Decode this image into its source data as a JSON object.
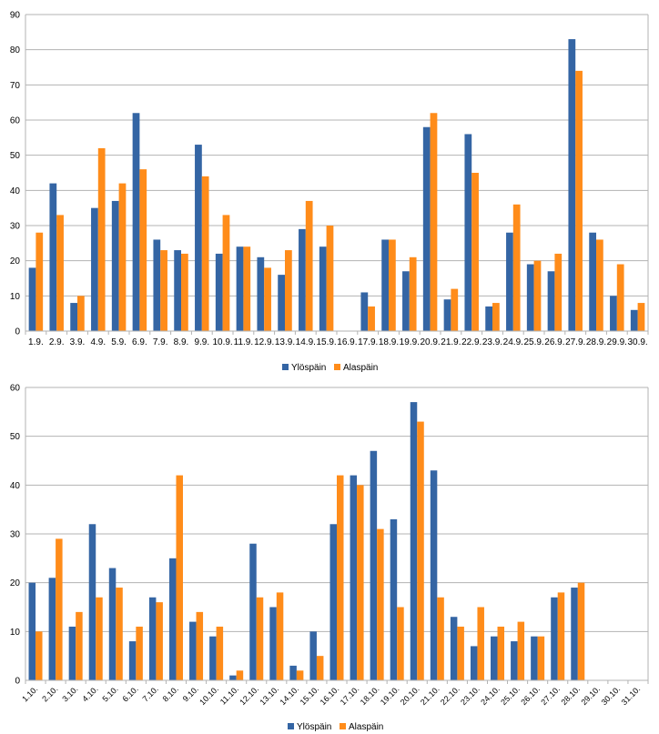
{
  "colors": {
    "series1": "#3465a4",
    "series2": "#ff8c1a",
    "grid": "#b3b3b3",
    "axis": "#b3b3b3",
    "text": "#000000"
  },
  "chart_data": [
    {
      "type": "bar",
      "title": "",
      "xlabel": "",
      "ylabel": "",
      "ylim": [
        0,
        90
      ],
      "yticks": [
        0,
        10,
        20,
        30,
        40,
        50,
        60,
        70,
        80,
        90
      ],
      "grid": true,
      "legend": "bottom-center",
      "categories": [
        "1.9.",
        "2.9.",
        "3.9.",
        "4.9.",
        "5.9.",
        "6.9.",
        "7.9.",
        "8.9.",
        "9.9.",
        "10.9.",
        "11.9.",
        "12.9.",
        "13.9.",
        "14.9.",
        "15.9.",
        "16.9.",
        "17.9.",
        "18.9.",
        "19.9.",
        "20.9.",
        "21.9.",
        "22.9.",
        "23.9.",
        "24.9.",
        "25.9.",
        "26.9.",
        "27.9.",
        "28.9.",
        "29.9.",
        "30.9."
      ],
      "series": [
        {
          "name": "Ylöspäin",
          "values": [
            18,
            42,
            8,
            35,
            37,
            62,
            26,
            23,
            53,
            22,
            24,
            21,
            16,
            29,
            24,
            0,
            11,
            26,
            17,
            58,
            9,
            56,
            7,
            28,
            19,
            17,
            83,
            28,
            10,
            6
          ]
        },
        {
          "name": "Alaspäin",
          "values": [
            28,
            33,
            10,
            52,
            42,
            46,
            23,
            22,
            44,
            33,
            24,
            18,
            23,
            37,
            30,
            0,
            7,
            26,
            21,
            62,
            12,
            45,
            8,
            36,
            20,
            22,
            74,
            26,
            19,
            8
          ]
        }
      ]
    },
    {
      "type": "bar",
      "title": "",
      "xlabel": "",
      "ylabel": "",
      "ylim": [
        0,
        60
      ],
      "yticks": [
        0,
        10,
        20,
        30,
        40,
        50,
        60
      ],
      "grid": true,
      "legend": "bottom-center",
      "categories": [
        "1.10.",
        "2.10.",
        "3.10.",
        "4.10.",
        "5.10.",
        "6.10.",
        "7.10.",
        "8.10.",
        "9.10.",
        "10.10.",
        "11.10.",
        "12.10.",
        "13.10.",
        "14.10.",
        "15.10.",
        "16.10.",
        "17.10.",
        "18.10.",
        "19.10.",
        "20.10.",
        "21.10.",
        "22.10.",
        "23.10.",
        "24.10.",
        "25.10.",
        "26.10.",
        "27.10.",
        "28.10.",
        "29.10.",
        "30.10.",
        "31.10."
      ],
      "series": [
        {
          "name": "Ylöspäin",
          "values": [
            20,
            21,
            11,
            32,
            23,
            8,
            17,
            25,
            12,
            9,
            1,
            28,
            15,
            3,
            10,
            32,
            42,
            47,
            33,
            57,
            43,
            13,
            7,
            9,
            8,
            9,
            17,
            19,
            0,
            0,
            0
          ]
        },
        {
          "name": "Alaspäin",
          "values": [
            10,
            29,
            14,
            17,
            19,
            11,
            16,
            42,
            14,
            11,
            2,
            17,
            18,
            2,
            5,
            42,
            40,
            31,
            15,
            53,
            17,
            11,
            15,
            11,
            12,
            9,
            18,
            20,
            0,
            0,
            0
          ]
        }
      ]
    }
  ]
}
